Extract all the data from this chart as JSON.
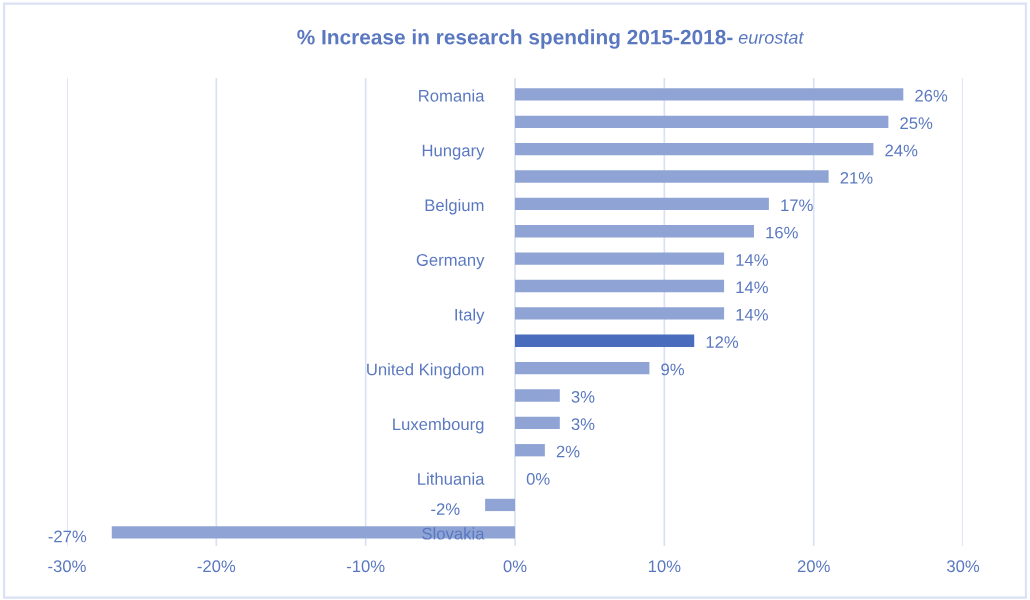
{
  "chart_data": {
    "type": "bar",
    "orientation": "horizontal",
    "title": "% Increase in research spending 2015-2018-",
    "subtitle": "eurostat",
    "categories": [
      "Romania",
      null,
      "Hungary",
      null,
      "Belgium",
      null,
      "Germany",
      null,
      "Italy",
      null,
      "United Kingdom",
      null,
      "Luxembourg",
      null,
      "Lithuania",
      null,
      "Slovakia"
    ],
    "values": [
      26,
      25,
      24,
      21,
      17,
      16,
      14,
      14,
      14,
      12,
      9,
      3,
      3,
      2,
      0,
      -2,
      -27
    ],
    "colors": [
      "#8fa4d5",
      "#8fa4d5",
      "#8fa4d5",
      "#8fa4d5",
      "#8fa4d5",
      "#8fa4d5",
      "#8fa4d5",
      "#8fa4d5",
      "#8fa4d5",
      "#4a6cbc",
      "#8fa4d5",
      "#8fa4d5",
      "#8fa4d5",
      "#8fa4d5",
      "#8fa4d5",
      "#8fa4d5",
      "#8fa4d5"
    ],
    "value_labels": [
      "26%",
      "25%",
      "24%",
      "21%",
      "17%",
      "16%",
      "14%",
      "14%",
      "14%",
      "12%",
      "9%",
      "3%",
      "3%",
      "2%",
      "0%",
      "-2%",
      "-27%"
    ],
    "xlim": [
      -30,
      30
    ],
    "xticks": [
      {
        "value": -30,
        "label": "-30%"
      },
      {
        "value": -20,
        "label": "-20%"
      },
      {
        "value": -10,
        "label": "-10%"
      },
      {
        "value": 0,
        "label": "0%"
      },
      {
        "value": 10,
        "label": "10%"
      },
      {
        "value": 20,
        "label": "20%"
      },
      {
        "value": 30,
        "label": "30%"
      }
    ],
    "grid": "x"
  }
}
